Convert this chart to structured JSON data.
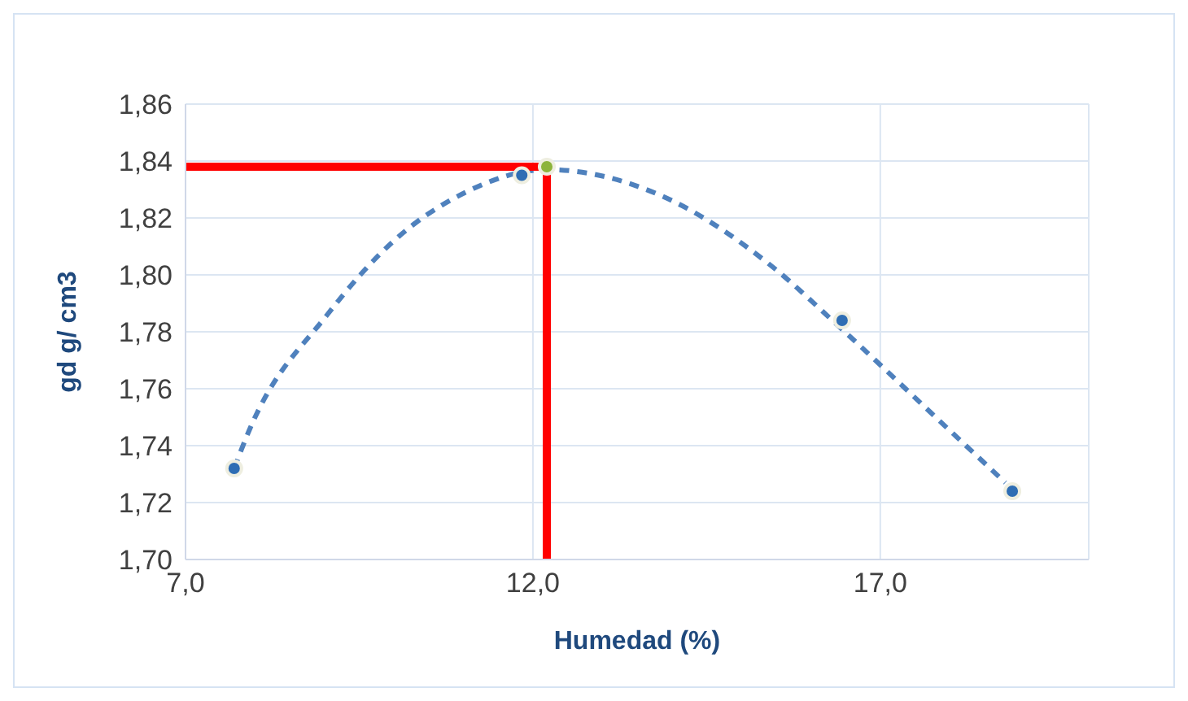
{
  "chart_data": {
    "type": "scatter",
    "xlabel": "Humedad (%)",
    "ylabel": "gd g/ cm3",
    "xlim": [
      7,
      20
    ],
    "xticks": [
      {
        "value": 7,
        "label": "7,0"
      },
      {
        "value": 12,
        "label": "12,0"
      },
      {
        "value": 17,
        "label": "17,0"
      }
    ],
    "ylim": [
      1.7,
      1.86
    ],
    "yticks": [
      {
        "value": 1.7,
        "label": "1,70"
      },
      {
        "value": 1.72,
        "label": "1,72"
      },
      {
        "value": 1.74,
        "label": "1,74"
      },
      {
        "value": 1.76,
        "label": "1,76"
      },
      {
        "value": 1.78,
        "label": "1,78"
      },
      {
        "value": 1.8,
        "label": "1,80"
      },
      {
        "value": 1.82,
        "label": "1,82"
      },
      {
        "value": 1.84,
        "label": "1,84"
      },
      {
        "value": 1.86,
        "label": "1,86"
      }
    ],
    "grid": true,
    "series": [
      {
        "type": "line",
        "line_style": "dashed",
        "marker": "none",
        "color": "#4f81bd",
        "x": [
          7.7,
          7.91,
          9.04,
          10.0,
          11.03,
          12.2,
          13.83,
          15.44,
          16.4,
          17.84,
          18.8
        ],
        "values": [
          1.732,
          1.745,
          1.786,
          1.812,
          1.829,
          1.837,
          1.828,
          1.803,
          1.782,
          1.749,
          1.727
        ]
      },
      {
        "type": "line",
        "line_style": "solid",
        "marker": "none",
        "color": "#ff0000",
        "x": [
          7,
          12.2
        ],
        "values": [
          1.838,
          1.838
        ]
      },
      {
        "type": "line",
        "line_style": "solid",
        "marker": "none",
        "color": "#ff0000",
        "x": [
          12.2,
          12.2
        ],
        "values": [
          1.7,
          1.838
        ]
      },
      {
        "type": "scatter",
        "marker": "circle",
        "color": "#2e6db4",
        "x": [
          7.7,
          11.84,
          16.45,
          18.9
        ],
        "values": [
          1.732,
          1.835,
          1.784,
          1.724
        ]
      },
      {
        "type": "scatter",
        "marker": "circle",
        "color": "#8db43c",
        "x": [
          12.2
        ],
        "values": [
          1.838
        ]
      }
    ]
  }
}
